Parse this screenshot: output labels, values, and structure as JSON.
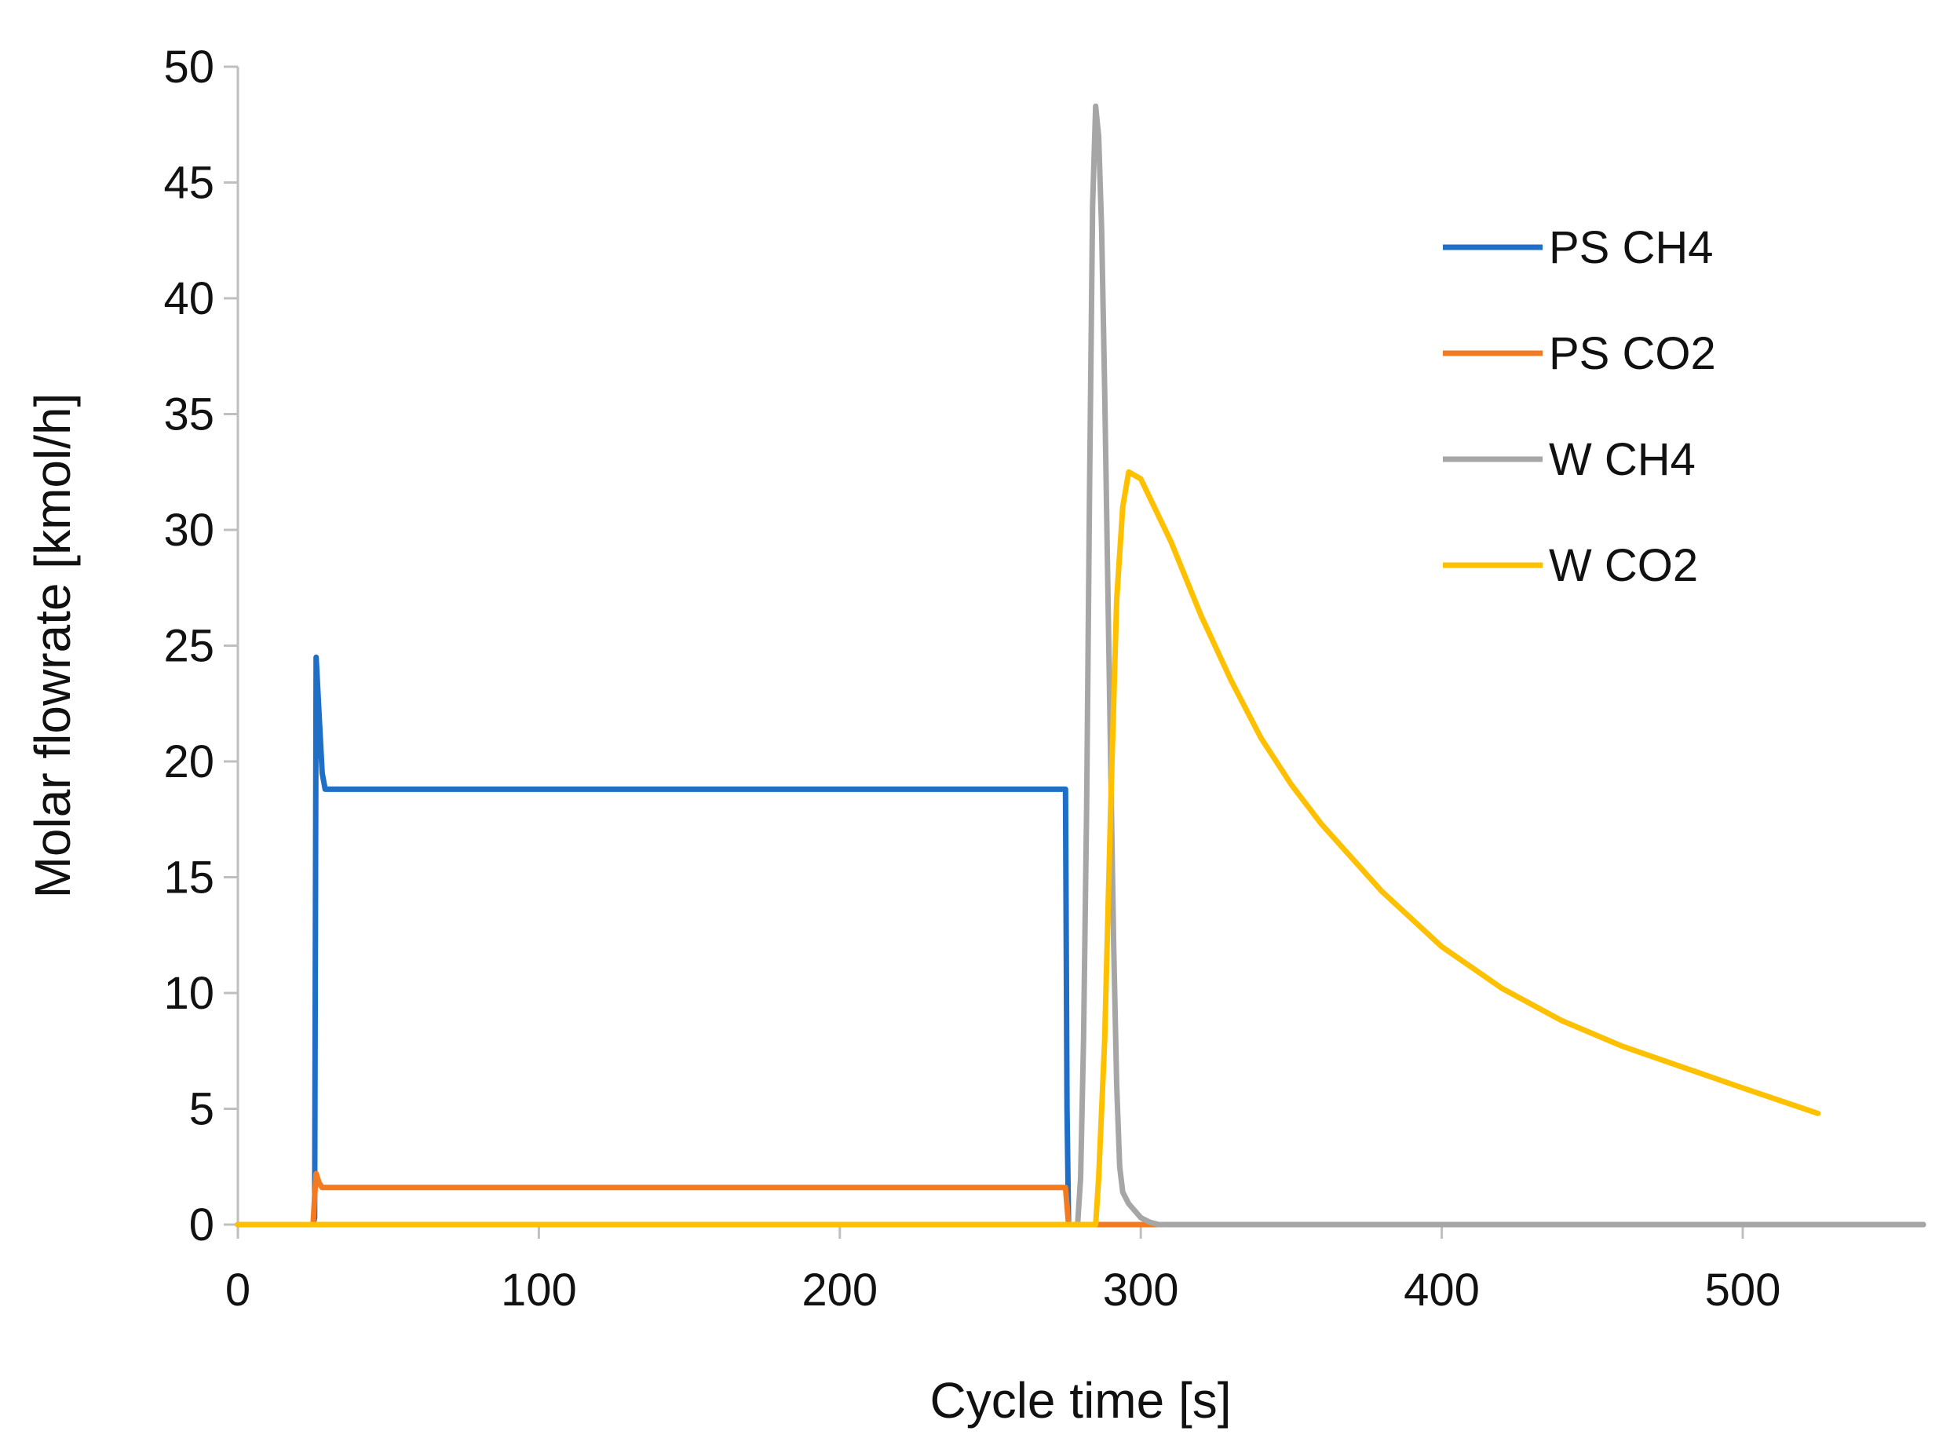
{
  "chart_data": {
    "type": "line",
    "title": "",
    "xlabel": "Cycle time [s]",
    "ylabel": "Molar flowrate [kmol/h]",
    "xlim": [
      0,
      560
    ],
    "ylim": [
      0,
      50
    ],
    "x_ticks": [
      0,
      100,
      200,
      300,
      400,
      500
    ],
    "y_ticks": [
      0,
      5,
      10,
      15,
      20,
      25,
      30,
      35,
      40,
      45,
      50
    ],
    "x_tick_labels": [
      "0",
      "100",
      "200",
      "300",
      "400",
      "500"
    ],
    "y_tick_labels": [
      "0",
      "5",
      "10",
      "15",
      "20",
      "25",
      "30",
      "35",
      "40",
      "45",
      "50"
    ],
    "grid": false,
    "legend_position": "top-right",
    "series": [
      {
        "name": "PS CH4",
        "color": "#1f6fc6",
        "x": [
          0,
          25,
          25.5,
          26,
          27,
          28,
          29,
          30,
          100,
          200,
          275,
          275.5,
          276,
          560
        ],
        "y": [
          0,
          0,
          0.3,
          24.5,
          22,
          19.5,
          18.8,
          18.8,
          18.8,
          18.8,
          18.8,
          5,
          0,
          0
        ]
      },
      {
        "name": "PS CO2",
        "color": "#f47a20",
        "x": [
          0,
          25,
          25.5,
          26,
          27,
          28,
          30,
          100,
          200,
          275,
          275.5,
          276,
          555
        ],
        "y": [
          0,
          0,
          1.2,
          2.2,
          1.8,
          1.6,
          1.6,
          1.6,
          1.6,
          1.6,
          0.8,
          0,
          0
        ]
      },
      {
        "name": "W CH4",
        "color": "#a6a6a6",
        "x": [
          0,
          279,
          280,
          281,
          282,
          283,
          284,
          285,
          286,
          287,
          288,
          289,
          290,
          291,
          292,
          293,
          294,
          296,
          298,
          300,
          303,
          306,
          320,
          400,
          500,
          560
        ],
        "y": [
          0,
          0,
          2,
          8,
          18,
          32,
          44,
          48.3,
          47,
          43,
          36,
          28,
          20,
          12,
          6,
          2.5,
          1.4,
          0.9,
          0.6,
          0.3,
          0.1,
          0,
          0,
          0,
          0,
          0
        ]
      },
      {
        "name": "W CO2",
        "color": "#ffc000",
        "x": [
          0,
          285,
          286,
          288,
          290,
          292,
          294,
          296,
          300,
          310,
          320,
          330,
          340,
          350,
          360,
          380,
          400,
          420,
          440,
          460,
          480,
          500,
          525
        ],
        "y": [
          0,
          0,
          2,
          8,
          18,
          27,
          31,
          32.5,
          32.2,
          29.5,
          26.3,
          23.5,
          21,
          19,
          17.3,
          14.4,
          12,
          10.2,
          8.8,
          7.7,
          6.8,
          5.9,
          4.8
        ]
      }
    ]
  }
}
